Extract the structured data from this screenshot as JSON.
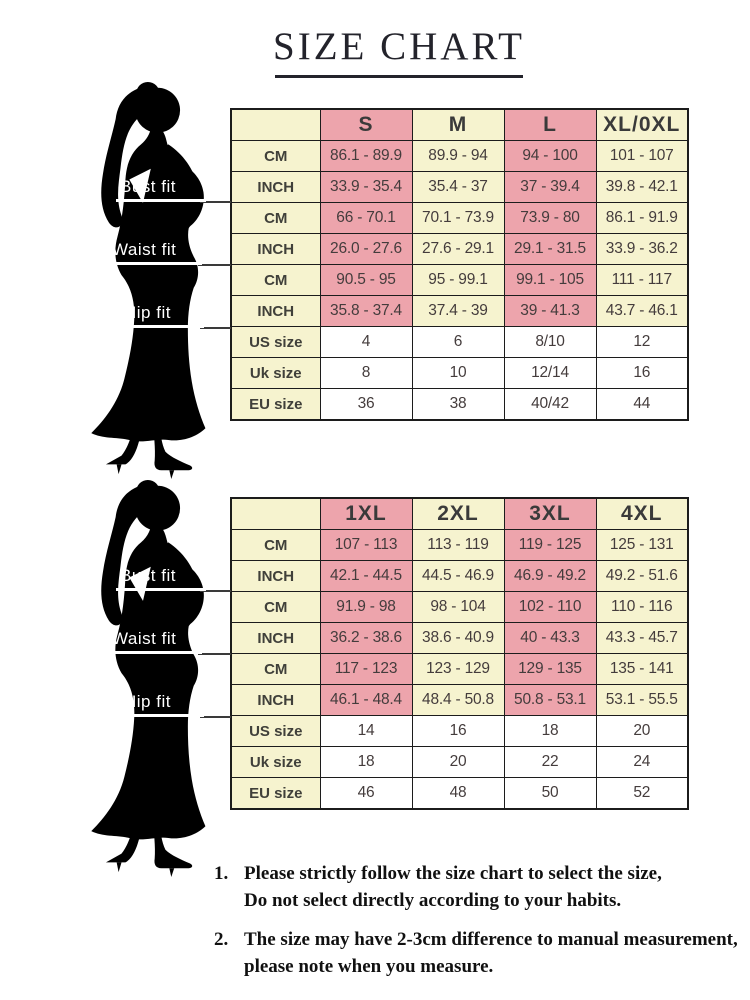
{
  "title": "SIZE CHART",
  "colors": {
    "pink": "#eda4ac",
    "cream": "#f6f3cf",
    "cell_white": "#ffffff",
    "border": "#1c1c1c",
    "silhouette": "#000000",
    "title_text": "#23232b"
  },
  "fit_labels": {
    "bust": "Bust fit",
    "waist": "Waist fit",
    "hip": "Hip fit"
  },
  "chart_data": [
    {
      "type": "table",
      "title": "SIZE CHART (S - XL/0XL)",
      "columns": [
        "",
        "S",
        "M",
        "L",
        "XL/0XL"
      ],
      "row_groups": [
        "Bust fit",
        "Bust fit",
        "Waist fit",
        "Waist fit",
        "Hip fit",
        "Hip fit",
        "",
        "",
        ""
      ],
      "rows": [
        [
          "CM",
          "86.1 - 89.9",
          "89.9 - 94",
          "94 - 100",
          "101 - 107"
        ],
        [
          "INCH",
          "33.9 - 35.4",
          "35.4 - 37",
          "37 - 39.4",
          "39.8 - 42.1"
        ],
        [
          "CM",
          "66 - 70.1",
          "70.1 - 73.9",
          "73.9 - 80",
          "86.1 - 91.9"
        ],
        [
          "INCH",
          "26.0 - 27.6",
          "27.6 - 29.1",
          "29.1 - 31.5",
          "33.9 - 36.2"
        ],
        [
          "CM",
          "90.5 - 95",
          "95 - 99.1",
          "99.1 - 105",
          "111 - 117"
        ],
        [
          "INCH",
          "35.8 - 37.4",
          "37.4 - 39",
          "39 - 41.3",
          "43.7 - 46.1"
        ],
        [
          "US size",
          "4",
          "6",
          "8/10",
          "12"
        ],
        [
          "Uk size",
          "8",
          "10",
          "12/14",
          "16"
        ],
        [
          "EU size",
          "36",
          "38",
          "40/42",
          "44"
        ]
      ]
    },
    {
      "type": "table",
      "title": "SIZE CHART (1XL - 4XL)",
      "columns": [
        "",
        "1XL",
        "2XL",
        "3XL",
        "4XL"
      ],
      "row_groups": [
        "Bust fit",
        "Bust fit",
        "Waist fit",
        "Waist fit",
        "Hip fit",
        "Hip fit",
        "",
        "",
        ""
      ],
      "rows": [
        [
          "CM",
          "107 - 113",
          "113 - 119",
          "119 - 125",
          "125 - 131"
        ],
        [
          "INCH",
          "42.1 - 44.5",
          "44.5 - 46.9",
          "46.9 - 49.2",
          "49.2 - 51.6"
        ],
        [
          "CM",
          "91.9 - 98",
          "98 - 104",
          "102 - 110",
          "110 - 116"
        ],
        [
          "INCH",
          "36.2 - 38.6",
          "38.6 - 40.9",
          "40 - 43.3",
          "43.3 - 45.7"
        ],
        [
          "CM",
          "117 - 123",
          "123 - 129",
          "129 - 135",
          "135 - 141"
        ],
        [
          "INCH",
          "46.1 - 48.4",
          "48.4 - 50.8",
          "50.8 - 53.1",
          "53.1 - 55.5"
        ],
        [
          "US size",
          "14",
          "16",
          "18",
          "20"
        ],
        [
          "Uk size",
          "18",
          "20",
          "22",
          "24"
        ],
        [
          "EU size",
          "46",
          "48",
          "50",
          "52"
        ]
      ]
    }
  ],
  "notes": [
    {
      "num": "1.",
      "line1": "Please strictly follow the size chart to select the size,",
      "line2": "Do not select directly according to your habits."
    },
    {
      "num": "2.",
      "line1": "The size may have 2-3cm difference  to manual measurement,",
      "line2": "please note when you measure."
    }
  ]
}
